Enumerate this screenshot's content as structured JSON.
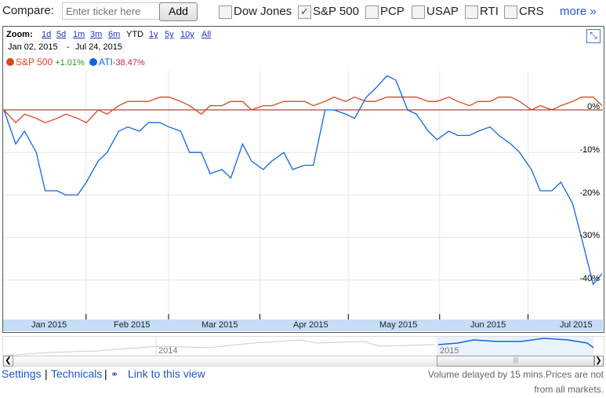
{
  "toolbar": {
    "compare_label": "Compare:",
    "ticker_placeholder": "Enter ticker here",
    "add_label": "Add",
    "checkboxes": [
      {
        "label": "Dow Jones",
        "checked": false
      },
      {
        "label": "S&P 500",
        "checked": true
      },
      {
        "label": "PCP",
        "checked": false
      },
      {
        "label": "USAP",
        "checked": false
      },
      {
        "label": "RTI",
        "checked": false
      },
      {
        "label": "CRS",
        "checked": false
      }
    ],
    "more_label": "more »"
  },
  "zoom": {
    "label": "Zoom:",
    "options": [
      "1d",
      "5d",
      "1m",
      "3m",
      "6m",
      "YTD",
      "1y",
      "5y",
      "10y",
      "All"
    ],
    "selected": "YTD"
  },
  "range": {
    "start": "Jan 02, 2015",
    "end": "Jul 24, 2015",
    "sep": "-"
  },
  "legend": [
    {
      "name": "S&P 500",
      "change": "+1.01%",
      "color": "#dd4422",
      "change_color": "#229922"
    },
    {
      "name": "ATI",
      "change": "-38.47%",
      "color": "#1166dd",
      "change_color": "#cc2244"
    }
  ],
  "chart_data": {
    "type": "line",
    "xlabel": "",
    "ylabel": "",
    "y_ticks": [
      "0%",
      "-10%",
      "-20%",
      "-30%",
      "-40%"
    ],
    "ylim": [
      -42,
      11
    ],
    "x_ticks": [
      "Jan 2015",
      "Feb 2015",
      "Mar 2015",
      "Apr 2015",
      "May 2015",
      "Jun 2015",
      "Jul 2015"
    ],
    "x_range": [
      "2015-01-02",
      "2015-07-24"
    ],
    "dates": [
      "2015-01-02",
      "2015-01-06",
      "2015-01-09",
      "2015-01-13",
      "2015-01-16",
      "2015-01-20",
      "2015-01-23",
      "2015-01-27",
      "2015-01-30",
      "2015-02-03",
      "2015-02-06",
      "2015-02-10",
      "2015-02-13",
      "2015-02-17",
      "2015-02-20",
      "2015-02-24",
      "2015-02-27",
      "2015-03-03",
      "2015-03-06",
      "2015-03-10",
      "2015-03-13",
      "2015-03-17",
      "2015-03-20",
      "2015-03-24",
      "2015-03-27",
      "2015-03-31",
      "2015-04-03",
      "2015-04-07",
      "2015-04-10",
      "2015-04-14",
      "2015-04-17",
      "2015-04-21",
      "2015-04-24",
      "2015-04-28",
      "2015-05-01",
      "2015-05-05",
      "2015-05-08",
      "2015-05-12",
      "2015-05-15",
      "2015-05-19",
      "2015-05-22",
      "2015-05-26",
      "2015-05-29",
      "2015-06-02",
      "2015-06-05",
      "2015-06-09",
      "2015-06-12",
      "2015-06-16",
      "2015-06-19",
      "2015-06-23",
      "2015-06-26",
      "2015-06-30",
      "2015-07-03",
      "2015-07-07",
      "2015-07-10",
      "2015-07-14",
      "2015-07-17",
      "2015-07-21",
      "2015-07-24"
    ],
    "series": [
      {
        "name": "S&P 500",
        "color": "#dd4422",
        "values": [
          0,
          -3,
          -1,
          -2,
          -3,
          -2,
          -1,
          -2,
          -3,
          0,
          -1,
          1,
          2,
          2,
          2,
          3,
          3,
          2,
          1,
          -1,
          1,
          1,
          2,
          2,
          0,
          1,
          1,
          2,
          2,
          2,
          1,
          2,
          3,
          2,
          3,
          2,
          2,
          3,
          3,
          3,
          3,
          2,
          2,
          3,
          2,
          1,
          2,
          2,
          3,
          3,
          2,
          0,
          1,
          0,
          1,
          2,
          3,
          3,
          1.01
        ]
      },
      {
        "name": "ATI",
        "color": "#1166dd",
        "values": [
          0,
          -8,
          -5,
          -10,
          -19,
          -19,
          -20,
          -20,
          -17,
          -12,
          -10,
          -5,
          -4,
          -5,
          -3,
          -3,
          -4,
          -5,
          -10,
          -10,
          -15,
          -14,
          -16,
          -8,
          -12,
          -14,
          -12,
          -10,
          -14,
          -13,
          -13,
          0,
          0,
          -1,
          -2,
          3,
          5,
          8,
          7,
          0,
          -1,
          -5,
          -7,
          -5,
          -6,
          -6,
          -5,
          -4,
          -6,
          -8,
          -10,
          -14,
          -19,
          -19,
          -17,
          -22,
          -30,
          -41,
          -38.47
        ]
      }
    ],
    "grid": true,
    "legend": "top-left"
  },
  "navigator": {
    "labels": [
      "2014",
      "2015"
    ]
  },
  "footer": {
    "settings": "Settings",
    "technicals": "Technicals",
    "link": "Link to this view",
    "sep": "|",
    "note_line1": "Volume delayed by 15 mins.Prices are not",
    "note_line2": "from all markets."
  }
}
